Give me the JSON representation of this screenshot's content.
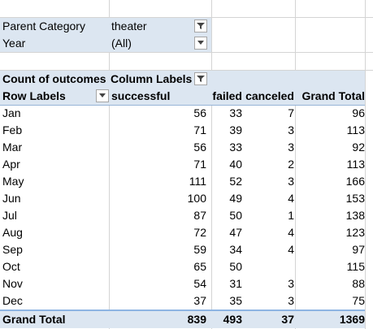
{
  "filters": [
    {
      "label": "Parent Category",
      "value": "theater"
    },
    {
      "label": "Year",
      "value": "(All)"
    }
  ],
  "pivot": {
    "header1": {
      "measure": "Count of outcomes",
      "col_labels": "Column Labels"
    },
    "header2": {
      "row_labels": "Row Labels",
      "cols": [
        "successful",
        "failed",
        "canceled",
        "Grand Total"
      ]
    },
    "rows": [
      {
        "label": "Jan",
        "successful": "56",
        "failed": "33",
        "canceled": "7",
        "total": "96"
      },
      {
        "label": "Feb",
        "successful": "71",
        "failed": "39",
        "canceled": "3",
        "total": "113"
      },
      {
        "label": "Mar",
        "successful": "56",
        "failed": "33",
        "canceled": "3",
        "total": "92"
      },
      {
        "label": "Apr",
        "successful": "71",
        "failed": "40",
        "canceled": "2",
        "total": "113"
      },
      {
        "label": "May",
        "successful": "111",
        "failed": "52",
        "canceled": "3",
        "total": "166"
      },
      {
        "label": "Jun",
        "successful": "100",
        "failed": "49",
        "canceled": "4",
        "total": "153"
      },
      {
        "label": "Jul",
        "successful": "87",
        "failed": "50",
        "canceled": "1",
        "total": "138"
      },
      {
        "label": "Aug",
        "successful": "72",
        "failed": "47",
        "canceled": "4",
        "total": "123"
      },
      {
        "label": "Sep",
        "successful": "59",
        "failed": "34",
        "canceled": "4",
        "total": "97"
      },
      {
        "label": "Oct",
        "successful": "65",
        "failed": "50",
        "canceled": "",
        "total": "115"
      },
      {
        "label": "Nov",
        "successful": "54",
        "failed": "31",
        "canceled": "3",
        "total": "88"
      },
      {
        "label": "Dec",
        "successful": "37",
        "failed": "35",
        "canceled": "3",
        "total": "75"
      }
    ],
    "grand_total": {
      "label": "Grand Total",
      "successful": "839",
      "failed": "493",
      "canceled": "37",
      "total": "1369"
    }
  },
  "icons": {
    "filter_active": "filter-dropdown-icon",
    "dropdown": "chevron-down-icon"
  },
  "colors": {
    "pivot_header_fill": "#dce6f1",
    "total_border": "#8db4e2"
  }
}
